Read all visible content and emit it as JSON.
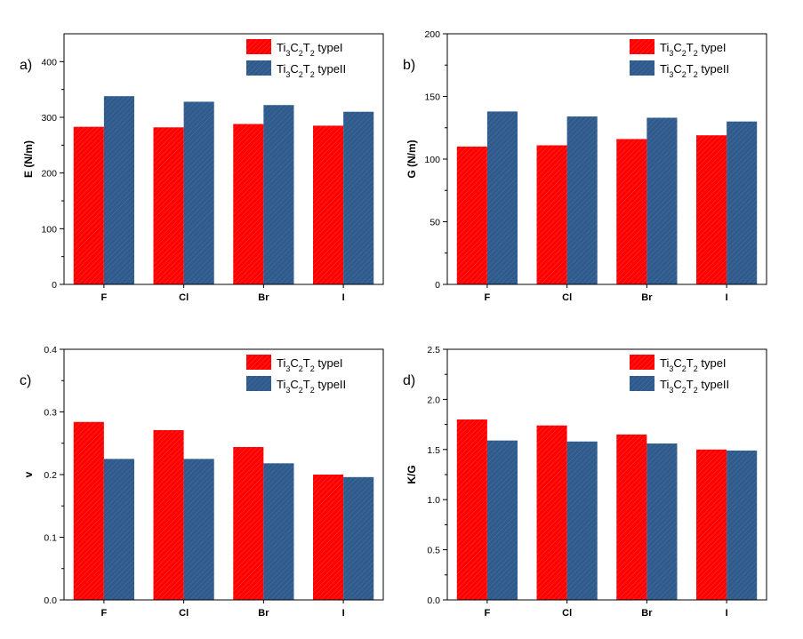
{
  "colors": {
    "typeI": "#ff0000",
    "typeII": "#2f5a8c",
    "axis": "#000000"
  },
  "chart_data": [
    {
      "type": "bar",
      "panel_label": "a)",
      "ylabel": "E (N/m)",
      "categories": [
        "F",
        "Cl",
        "Br",
        "I"
      ],
      "ylim": [
        0,
        450
      ],
      "yticks": [
        0,
        100,
        200,
        300,
        400
      ],
      "legend_placement": "top-right",
      "series": [
        {
          "name": "Ti3C2T2 typeI",
          "label_main": "Ti",
          "sub1": "3",
          "label_mid": "C",
          "sub2": "2",
          "label_t": "T",
          "sub3": "2",
          "label_end": " typeI",
          "values": [
            283,
            282,
            288,
            285
          ]
        },
        {
          "name": "Ti3C2T2 typeII",
          "label_main": "Ti",
          "sub1": "3",
          "label_mid": "C",
          "sub2": "2",
          "label_t": "T",
          "sub3": "2",
          "label_end": " typeII",
          "values": [
            338,
            328,
            322,
            310
          ]
        }
      ]
    },
    {
      "type": "bar",
      "panel_label": "b)",
      "ylabel": "G (N/m)",
      "categories": [
        "F",
        "Cl",
        "Br",
        "I"
      ],
      "ylim": [
        0,
        200
      ],
      "yticks": [
        0,
        50,
        100,
        150,
        200
      ],
      "legend_placement": "top-right",
      "series": [
        {
          "name": "Ti3C2T2 typeI",
          "label_main": "Ti",
          "sub1": "3",
          "label_mid": "C",
          "sub2": "2",
          "label_t": "T",
          "sub3": "2",
          "label_end": " typeI",
          "values": [
            110,
            111,
            116,
            119
          ]
        },
        {
          "name": "Ti3C2T2 typeII",
          "label_main": "Ti",
          "sub1": "3",
          "label_mid": "C",
          "sub2": "2",
          "label_t": "T",
          "sub3": "2",
          "label_end": " typeII",
          "values": [
            138,
            134,
            133,
            130
          ]
        }
      ]
    },
    {
      "type": "bar",
      "panel_label": "c)",
      "ylabel": "v",
      "categories": [
        "F",
        "Cl",
        "Br",
        "I"
      ],
      "ylim": [
        0,
        0.4
      ],
      "yticks": [
        0.0,
        0.1,
        0.2,
        0.3,
        0.4
      ],
      "tick_decimals": 1,
      "legend_placement": "top-right",
      "series": [
        {
          "name": "Ti3C2T2 typeI",
          "label_main": "Ti",
          "sub1": "3",
          "label_mid": "C",
          "sub2": "2",
          "label_t": "T",
          "sub3": "2",
          "label_end": " typeI",
          "values": [
            0.284,
            0.271,
            0.244,
            0.2
          ]
        },
        {
          "name": "Ti3C2T2 typeII",
          "label_main": "Ti",
          "sub1": "3",
          "label_mid": "C",
          "sub2": "2",
          "label_t": "T",
          "sub3": "2",
          "label_end": " typeII",
          "values": [
            0.225,
            0.225,
            0.218,
            0.196
          ]
        }
      ]
    },
    {
      "type": "bar",
      "panel_label": "d)",
      "ylabel": "K/G",
      "categories": [
        "F",
        "Cl",
        "Br",
        "I"
      ],
      "ylim": [
        0,
        2.5
      ],
      "yticks": [
        0.0,
        0.5,
        1.0,
        1.5,
        2.0,
        2.5
      ],
      "tick_decimals": 1,
      "legend_placement": "top-right",
      "series": [
        {
          "name": "Ti3C2T2 typeI",
          "label_main": "Ti",
          "sub1": "3",
          "label_mid": "C",
          "sub2": "2",
          "label_t": "T",
          "sub3": "2",
          "label_end": " typeI",
          "values": [
            1.8,
            1.74,
            1.65,
            1.5
          ]
        },
        {
          "name": "Ti3C2T2 typeII",
          "label_main": "Ti",
          "sub1": "3",
          "label_mid": "C",
          "sub2": "2",
          "label_t": "T",
          "sub3": "2",
          "label_end": " typeII",
          "values": [
            1.59,
            1.58,
            1.56,
            1.49
          ]
        }
      ]
    }
  ]
}
